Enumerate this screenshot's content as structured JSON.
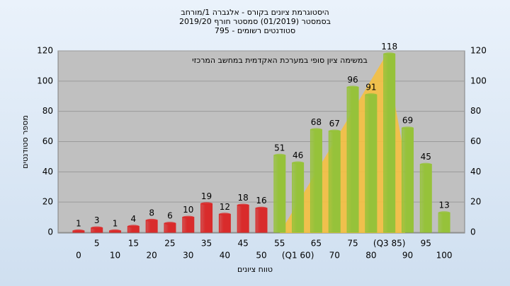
{
  "chart_data": {
    "type": "bar",
    "title": "היסטוגרמת ציונים בקורס - אלגברה 1/מורחב",
    "subtitle": "בסמסטר  (01/2019)  סמסטר חורף  2019/20",
    "subtitle2": "סטודנטים רשומים - 795",
    "annotation": "במשימה  ציון סופי במערכת האקדמית במחשב המרכזי",
    "x_label": "טווח ציונים",
    "y_label": "מספר סטודנטים",
    "categories": [
      "0",
      "5",
      "10",
      "15",
      "20",
      "25",
      "30",
      "35",
      "40",
      "45",
      "50",
      "55",
      "(Q1 60)",
      "65",
      "70",
      "75",
      "80",
      "(Q3 85)",
      "90",
      "95",
      "100"
    ],
    "values": [
      1,
      3,
      1,
      4,
      8,
      6,
      10,
      19,
      12,
      18,
      16,
      51,
      46,
      68,
      67,
      96,
      91,
      118,
      69,
      45,
      13
    ],
    "colors": [
      "#d92b2b",
      "#d92b2b",
      "#d92b2b",
      "#d92b2b",
      "#d92b2b",
      "#d92b2b",
      "#d92b2b",
      "#d92b2b",
      "#d92b2b",
      "#d92b2b",
      "#d92b2b",
      "#96c23a",
      "#96c23a",
      "#96c23a",
      "#96c23a",
      "#96c23a",
      "#96c23a",
      "#96c23a",
      "#96c23a",
      "#96c23a",
      "#96c23a"
    ],
    "ylim": [
      0,
      120
    ],
    "yticks": [
      0,
      20,
      40,
      60,
      80,
      100,
      120
    ],
    "grid": true
  }
}
